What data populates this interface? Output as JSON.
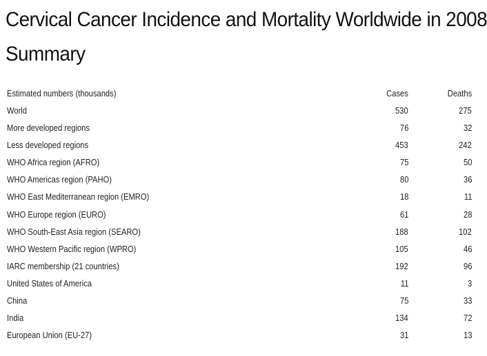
{
  "title": {
    "line1": "Cervical Cancer Incidence and Mortality Worldwide in 2008",
    "line2": "Summary"
  },
  "table": {
    "header": {
      "label": "Estimated numbers (thousands)",
      "cases": "Cases",
      "deaths": "Deaths"
    },
    "rows": [
      {
        "label": "World",
        "cases": "530",
        "deaths": "275"
      },
      {
        "label": "More developed regions",
        "cases": "76",
        "deaths": "32"
      },
      {
        "label": "Less developed regions",
        "cases": "453",
        "deaths": "242"
      },
      {
        "label": "WHO Africa region (AFRO)",
        "cases": "75",
        "deaths": "50"
      },
      {
        "label": "WHO Americas region (PAHO)",
        "cases": "80",
        "deaths": "36"
      },
      {
        "label": "WHO East Mediterranean region (EMRO)",
        "cases": "18",
        "deaths": "11"
      },
      {
        "label": "WHO Europe region (EURO)",
        "cases": "61",
        "deaths": "28"
      },
      {
        "label": "WHO South-East Asia region (SEARO)",
        "cases": "188",
        "deaths": "102"
      },
      {
        "label": "WHO Western Pacific region (WPRO)",
        "cases": "105",
        "deaths": "46"
      },
      {
        "label": "IARC membership (21 countries)",
        "cases": "192",
        "deaths": "96"
      },
      {
        "label": "United States of America",
        "cases": "11",
        "deaths": "3"
      },
      {
        "label": "China",
        "cases": "75",
        "deaths": "33"
      },
      {
        "label": "India",
        "cases": "134",
        "deaths": "72"
      },
      {
        "label": "European Union (EU-27)",
        "cases": "31",
        "deaths": "13"
      }
    ]
  }
}
